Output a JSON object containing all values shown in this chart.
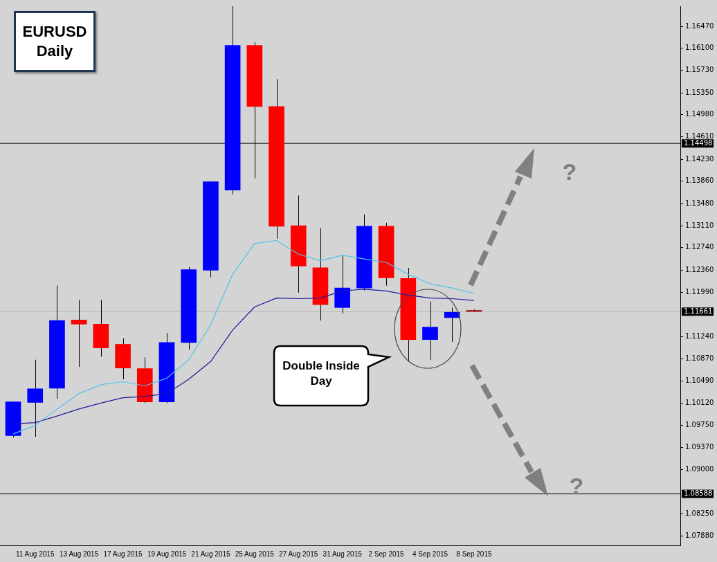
{
  "chart_data": {
    "type": "candlestick",
    "title": "EURUSD Daily",
    "categories": [
      null,
      "11 Aug 2015",
      null,
      "13 Aug 2015",
      null,
      "17 Aug 2015",
      null,
      "19 Aug 2015",
      null,
      "21 Aug 2015",
      null,
      "25 Aug 2015",
      null,
      "27 Aug 2015",
      null,
      "31 Aug 2015",
      null,
      "2 Sep 2015",
      null,
      "4 Sep 2015",
      null,
      "8 Sep 2015"
    ],
    "ohlc": [
      [
        1.0957,
        1.1014,
        1.0954,
        1.1014
      ],
      [
        1.1013,
        1.1085,
        1.0955,
        1.1036
      ],
      [
        1.1037,
        1.121,
        1.1019,
        1.1151
      ],
      [
        1.1152,
        1.1186,
        1.1073,
        1.1145
      ],
      [
        1.1145,
        1.1186,
        1.109,
        1.1105
      ],
      [
        1.1111,
        1.1121,
        1.1052,
        1.1071
      ],
      [
        1.107,
        1.1089,
        1.1012,
        1.1014
      ],
      [
        1.1014,
        1.113,
        1.1012,
        1.1114
      ],
      [
        1.1114,
        1.1241,
        1.1102,
        1.1237
      ],
      [
        1.1236,
        1.1386,
        1.1224,
        1.1385
      ],
      [
        1.1371,
        1.1681,
        1.1364,
        1.1615
      ],
      [
        1.1615,
        1.162,
        1.1391,
        1.1512
      ],
      [
        1.1512,
        1.1558,
        1.1289,
        1.131
      ],
      [
        1.1311,
        1.1362,
        1.1198,
        1.1243
      ],
      [
        1.124,
        1.1307,
        1.1151,
        1.1178
      ],
      [
        1.1173,
        1.126,
        1.1163,
        1.1206
      ],
      [
        1.1206,
        1.133,
        1.1202,
        1.131
      ],
      [
        1.131,
        1.1316,
        1.121,
        1.1223
      ],
      [
        1.1222,
        1.124,
        1.1082,
        1.1119
      ],
      [
        1.1119,
        1.1183,
        1.1085,
        1.114
      ],
      [
        1.1156,
        1.1173,
        1.1115,
        1.1165
      ],
      [
        1.1168,
        1.117,
        1.1165,
        1.1166
      ]
    ],
    "colors": [
      "#0000ff",
      "#0000ff",
      "#0000ff",
      "#ff0000",
      "#ff0000",
      "#ff0000",
      "#ff0000",
      "#0000ff",
      "#0000ff",
      "#0000ff",
      "#0000ff",
      "#ff0000",
      "#ff0000",
      "#ff0000",
      "#ff0000",
      "#0000ff",
      "#0000ff",
      "#ff0000",
      "#ff0000",
      "#0000ff",
      "#0000ff",
      "#a52a2a"
    ],
    "series": [
      {
        "type": "line",
        "color": "#4fc3e8",
        "values": [
          1.096,
          1.0974,
          1.1002,
          1.1028,
          1.1043,
          1.1048,
          1.1041,
          1.1054,
          1.1085,
          1.1144,
          1.1229,
          1.1281,
          1.1286,
          1.1263,
          1.1252,
          1.1261,
          1.1255,
          1.1249,
          1.1229,
          1.1213,
          1.1206,
          1.1197
        ]
      },
      {
        "type": "line",
        "color": "#1a1aa0",
        "values": [
          1.0977,
          1.0979,
          1.099,
          1.1002,
          1.1012,
          1.1021,
          1.1023,
          1.1028,
          1.1052,
          1.1082,
          1.1135,
          1.1174,
          1.1189,
          1.1188,
          1.1189,
          1.1201,
          1.1204,
          1.1201,
          1.1194,
          1.1189,
          1.1188,
          1.1185
        ]
      }
    ],
    "ylim": [
      1.0772,
      1.1681
    ],
    "yticks": [
      {
        "value": 1.1647,
        "label": "1.16470"
      },
      {
        "value": 1.161,
        "label": "1.16100"
      },
      {
        "value": 1.1573,
        "label": "1.15730"
      },
      {
        "value": 1.1535,
        "label": "1.15350"
      },
      {
        "value": 1.1498,
        "label": "1.14980"
      },
      {
        "value": 1.1461,
        "label": "1.14610"
      },
      {
        "value": 1.1423,
        "label": "1.14230"
      },
      {
        "value": 1.1386,
        "label": "1.13860"
      },
      {
        "value": 1.1348,
        "label": "1.13480"
      },
      {
        "value": 1.1311,
        "label": "1.13110"
      },
      {
        "value": 1.1274,
        "label": "1.12740"
      },
      {
        "value": 1.1236,
        "label": "1.12360"
      },
      {
        "value": 1.1199,
        "label": "1.11990"
      },
      {
        "value": 1.1124,
        "label": "1.11240"
      },
      {
        "value": 1.1087,
        "label": "1.10870"
      },
      {
        "value": 1.1049,
        "label": "1.10490"
      },
      {
        "value": 1.1012,
        "label": "1.10120"
      },
      {
        "value": 1.0975,
        "label": "1.09750"
      },
      {
        "value": 1.0937,
        "label": "1.09370"
      },
      {
        "value": 1.09,
        "label": "1.09000"
      },
      {
        "value": 1.0825,
        "label": "1.08250"
      },
      {
        "value": 1.0788,
        "label": "1.07880"
      }
    ],
    "ref_lines": [
      {
        "axis": "y",
        "value": 1.14498,
        "label": "1.14498",
        "color": "#000000"
      },
      {
        "axis": "y",
        "value": 1.11661,
        "label": "1.11661",
        "color": "#b4b4b4"
      },
      {
        "axis": "y",
        "value": 1.08588,
        "label": "1.08588",
        "color": "#000000"
      }
    ],
    "annotations": [
      "Double Inside Day",
      "?",
      "?"
    ],
    "grid": false,
    "legend": false
  }
}
